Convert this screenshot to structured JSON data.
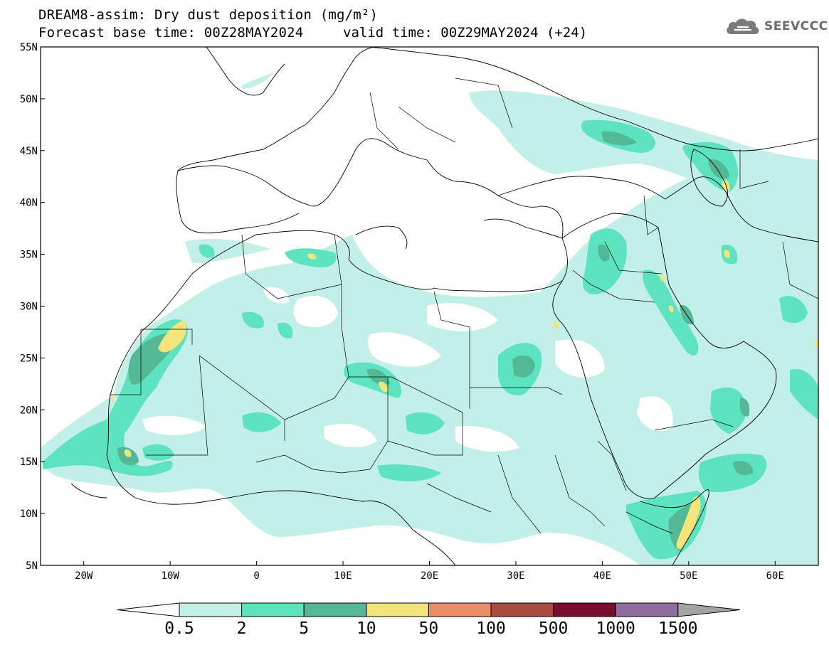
{
  "title": {
    "line1": "DREAM8-assim: Dry dust deposition (mg/m²)",
    "line2": "Forecast base time: 00Z28MAY2024",
    "valid": "valid time: 00Z29MAY2024 (+24)"
  },
  "logo": {
    "text": "SEEVCCC",
    "icon": "cloud-logo-icon"
  },
  "map": {
    "lon_range": [
      -25,
      65
    ],
    "lat_range": [
      5,
      55
    ],
    "lat_ticks": [
      {
        "value": 55,
        "label": "55N"
      },
      {
        "value": 50,
        "label": "50N"
      },
      {
        "value": 45,
        "label": "45N"
      },
      {
        "value": 40,
        "label": "40N"
      },
      {
        "value": 35,
        "label": "35N"
      },
      {
        "value": 30,
        "label": "30N"
      },
      {
        "value": 25,
        "label": "25N"
      },
      {
        "value": 20,
        "label": "20N"
      },
      {
        "value": 15,
        "label": "15N"
      },
      {
        "value": 10,
        "label": "10N"
      },
      {
        "value": 5,
        "label": "5N"
      }
    ],
    "lon_ticks": [
      {
        "value": -20,
        "label": "20W"
      },
      {
        "value": -10,
        "label": "10W"
      },
      {
        "value": 0,
        "label": "0"
      },
      {
        "value": 10,
        "label": "10E"
      },
      {
        "value": 20,
        "label": "20E"
      },
      {
        "value": 30,
        "label": "30E"
      },
      {
        "value": 40,
        "label": "40E"
      },
      {
        "value": 50,
        "label": "50E"
      },
      {
        "value": 60,
        "label": "60E"
      }
    ]
  },
  "colorbar": {
    "labels": [
      "0.5",
      "2",
      "5",
      "10",
      "50",
      "100",
      "500",
      "1000",
      "1500"
    ],
    "colors": [
      "#c2f0e8",
      "#5de3be",
      "#52b896",
      "#f3e57a",
      "#e98d68",
      "#a84a3e",
      "#7d0b2e",
      "#8f6e9f"
    ],
    "under_color": "#ffffff",
    "over_color": "#a4a4a4"
  }
}
